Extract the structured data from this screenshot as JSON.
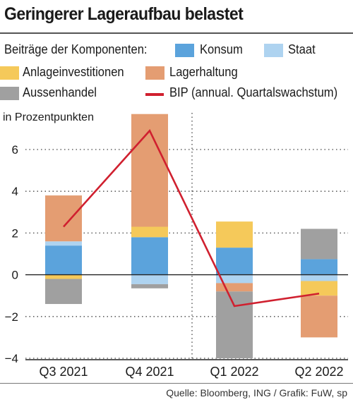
{
  "title": "Geringerer Lageraufbau belastet",
  "legend": {
    "heading": "Beiträge der Komponenten:",
    "items": [
      {
        "label": "Konsum",
        "color": "#5ba3dc"
      },
      {
        "label": "Staat",
        "color": "#aed3f0"
      },
      {
        "label": "Anlageinvestitionen",
        "color": "#f5c95a"
      },
      {
        "label": "Lagerhaltung",
        "color": "#e49d72"
      },
      {
        "label": "Aussenhandel",
        "color": "#a0a0a0"
      },
      {
        "label": "BIP (annual. Quartalswachstum)",
        "color": "#d0202f"
      }
    ]
  },
  "unit_label": "in Prozentpunkten",
  "source": "Quelle: Bloomberg, ING / Grafik: FuW, sp",
  "chart_data": {
    "type": "bar",
    "stacked": true,
    "categories": [
      "Q3 2021",
      "Q4 2021",
      "Q1 2022",
      "Q2 2022"
    ],
    "series": [
      {
        "name": "Konsum",
        "color": "#5ba3dc",
        "values": [
          1.4,
          1.8,
          1.3,
          0.75
        ]
      },
      {
        "name": "Staat",
        "color": "#aed3f0",
        "values": [
          0.2,
          -0.45,
          -0.4,
          -0.3
        ]
      },
      {
        "name": "Anlageinvestitionen",
        "color": "#f5c95a",
        "values": [
          -0.2,
          0.5,
          1.25,
          -0.7
        ]
      },
      {
        "name": "Lagerhaltung",
        "color": "#e49d72",
        "values": [
          2.2,
          5.4,
          -0.4,
          -2.0
        ]
      },
      {
        "name": "Aussenhandel",
        "color": "#a0a0a0",
        "values": [
          -1.2,
          -0.2,
          -3.2,
          1.45
        ]
      }
    ],
    "line": {
      "name": "BIP (annual. Quartalswachstum)",
      "color": "#d0202f",
      "values": [
        2.3,
        6.9,
        -1.5,
        -0.9
      ]
    },
    "ylim": [
      -4,
      7.5
    ],
    "yticks": [
      6,
      4,
      2,
      0,
      -2,
      -4
    ],
    "ytick_labels": [
      "6",
      "4",
      "2",
      "0",
      "−2",
      "−4"
    ],
    "grid": true,
    "separator_after_category": 1
  }
}
